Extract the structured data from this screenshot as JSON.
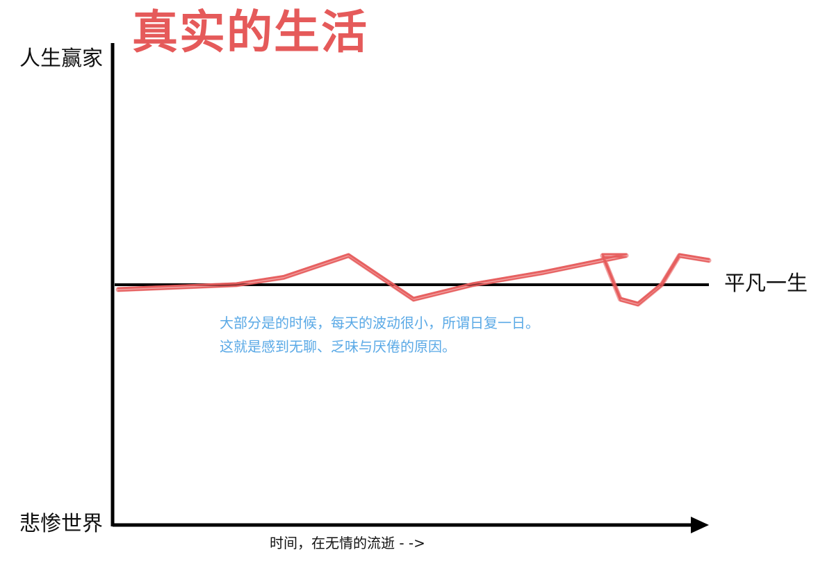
{
  "title": "真实的生活",
  "y_axis": {
    "top_label": "人生赢家",
    "bottom_label": "悲惨世界"
  },
  "x_axis": {
    "label": "时间，在无情的流逝 - ->"
  },
  "baseline_label": "平凡一生",
  "annotation": {
    "line1": "大部分是的时候，每天的波动很小，所谓日复一日。",
    "line2": "这就是感到无聊、乏味与厌倦的原因。"
  },
  "colors": {
    "title": "#e55a5a",
    "life_line": "#e55a5a",
    "annotation": "#5aa9e6",
    "axes": "#000000"
  },
  "chart_data": {
    "type": "line",
    "title": "真实的生活",
    "xlabel": "时间，在无情的流逝 - ->",
    "ylabel_top": "人生赢家",
    "ylabel_bottom": "悲惨世界",
    "baseline_label": "平凡一生",
    "ylim": [
      -100,
      100
    ],
    "xlim": [
      0,
      100
    ],
    "baseline": 0,
    "series": [
      {
        "x": [
          0,
          10,
          20,
          28,
          39,
          50,
          60,
          72,
          86,
          82,
          85,
          88,
          92,
          95,
          100
        ],
        "y": [
          -2,
          -1,
          0,
          3,
          12,
          -6,
          0,
          5,
          12,
          12,
          -6,
          -8,
          0,
          12,
          10
        ]
      }
    ]
  }
}
